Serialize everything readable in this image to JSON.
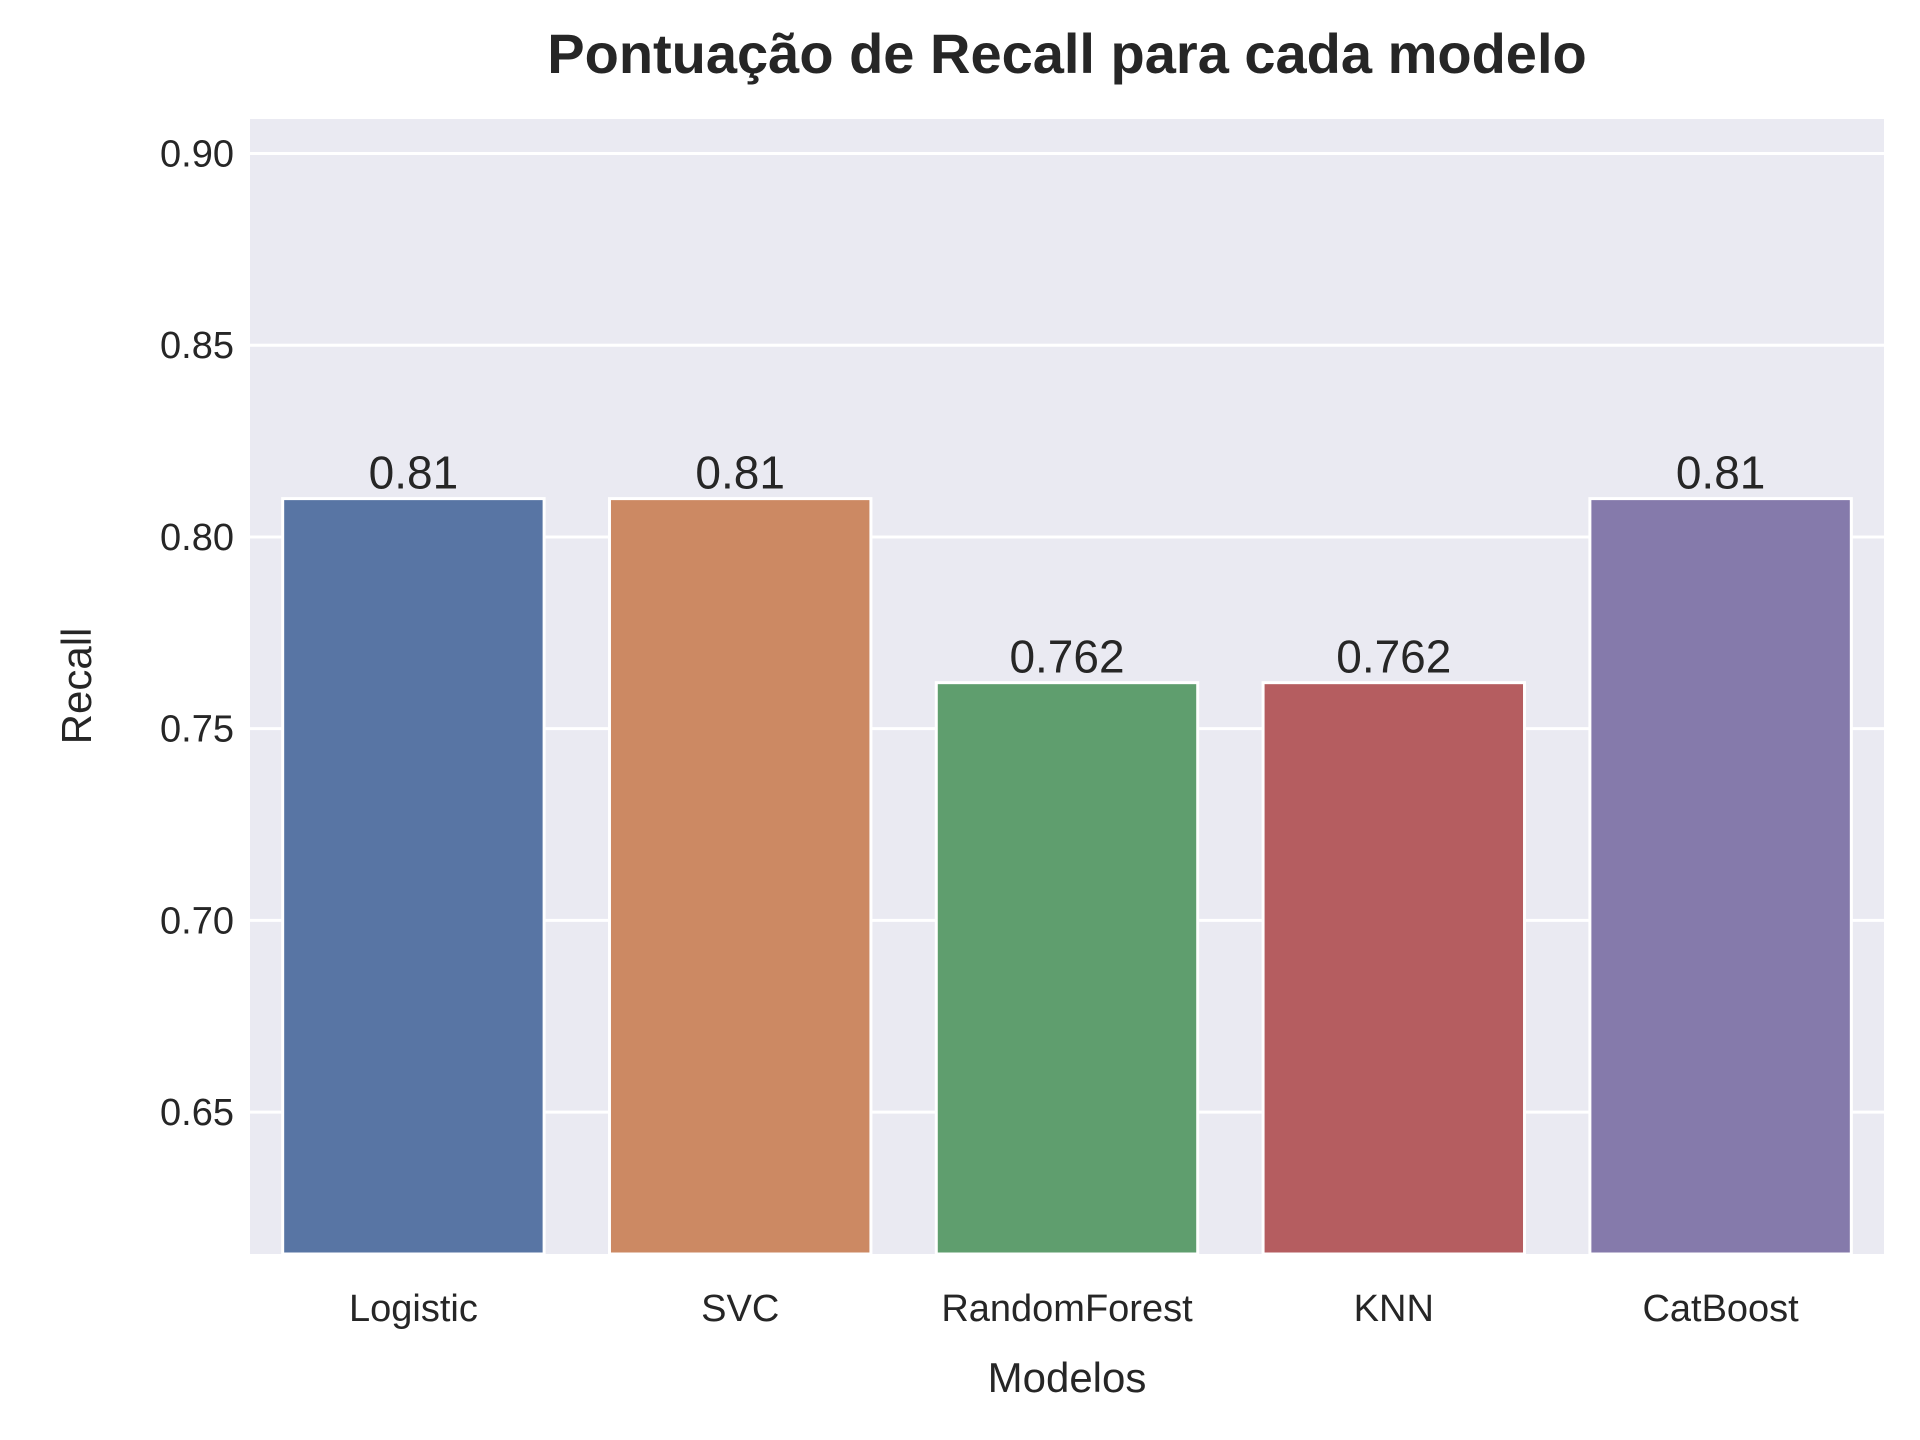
{
  "chart_data": {
    "type": "bar",
    "title": "Pontuação de Recall para cada modelo",
    "xlabel": "Modelos",
    "ylabel": "Recall",
    "categories": [
      "Logistic",
      "SVC",
      "RandomForest",
      "KNN",
      "CatBoost"
    ],
    "values": [
      0.81,
      0.81,
      0.762,
      0.762,
      0.81
    ],
    "data_labels": [
      "0.81",
      "0.81",
      "0.762",
      "0.762",
      "0.81"
    ],
    "ylim": [
      0.613,
      0.909
    ],
    "yticks": [
      0.65,
      0.7,
      0.75,
      0.8,
      0.85,
      0.9
    ],
    "ytick_labels": [
      "0.65",
      "0.70",
      "0.75",
      "0.80",
      "0.85",
      "0.90"
    ],
    "colors": [
      "#5875a4",
      "#cc8963",
      "#5f9e6e",
      "#b55d60",
      "#857aab"
    ],
    "background": "#eaeaf2",
    "grid": true,
    "legend": "none"
  }
}
